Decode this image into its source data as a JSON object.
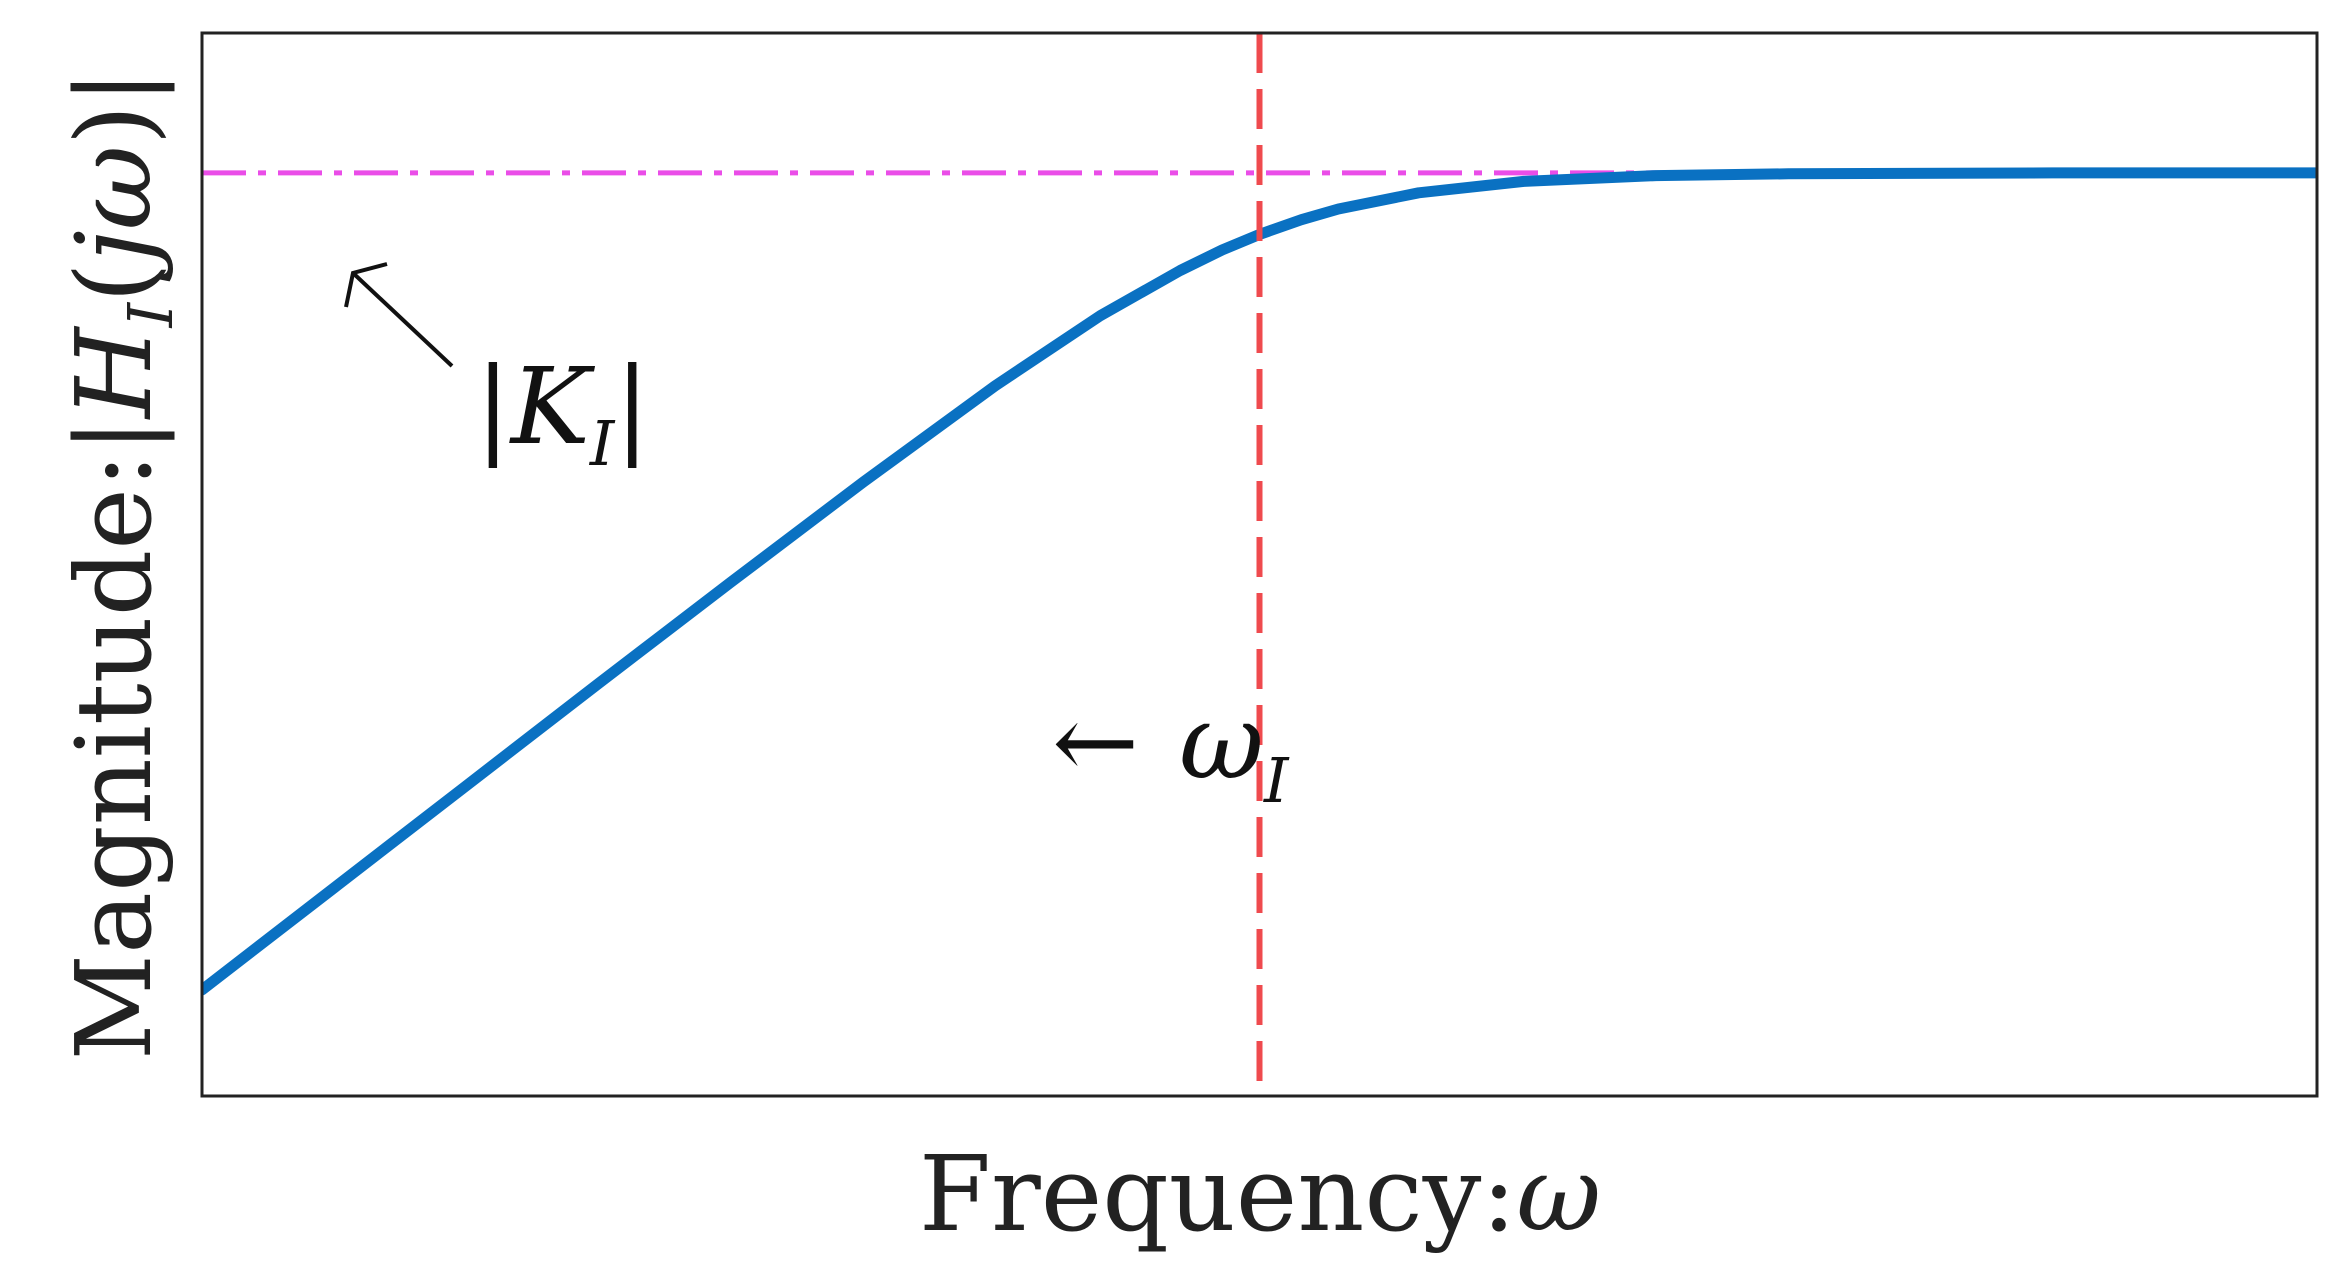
{
  "chart_data": {
    "type": "line",
    "xlabel": {
      "text": "Frequency:",
      "symbol": "ω"
    },
    "ylabel": {
      "text": "Magnitude:",
      "symbol_open": "|",
      "symbol_H": "H",
      "symbol_sub": "I",
      "symbol_arg_open": "(",
      "symbol_arg": "jω",
      "symbol_arg_close": ")",
      "symbol_close": "|"
    },
    "x_scale": "log",
    "y_scale": "log",
    "xlim": [
      0.01,
      100
    ],
    "ylim": [
      0.0055,
      2.2
    ],
    "ticks_shown": false,
    "grid": false,
    "series": [
      {
        "kind": "magnitude-curve",
        "color": "#0a71c2",
        "line_style": "solid",
        "x": [
          0.01,
          0.0178,
          0.0316,
          0.0562,
          0.1,
          0.178,
          0.316,
          0.5,
          0.708,
          0.85,
          1.0,
          1.2,
          1.41,
          2.0,
          3.16,
          5.62,
          10,
          31.6,
          100
        ],
        "y": [
          0.01,
          0.0178,
          0.0316,
          0.0562,
          0.0995,
          0.175,
          0.301,
          0.447,
          0.577,
          0.648,
          0.707,
          0.768,
          0.816,
          0.894,
          0.953,
          0.985,
          0.995,
          1.0,
          1.0
        ]
      }
    ],
    "reference_lines": [
      {
        "kind": "gain-asymptote",
        "orientation": "horizontal",
        "value": 1.0,
        "color": "#ea4de8",
        "line_style": "dashdot"
      },
      {
        "kind": "cutoff-frequency",
        "orientation": "vertical",
        "value": 1.0,
        "color": "#ef4a4e",
        "line_style": "dashed"
      }
    ],
    "annotations": [
      {
        "target": "gain-asymptote",
        "label_open": "|",
        "label_main": "K",
        "label_sub": "I",
        "label_close": "|",
        "arrow": true
      },
      {
        "target": "cutoff-frequency",
        "arrow_glyph": "←",
        "label_main": "ω",
        "label_sub": "I",
        "arrow": true
      }
    ]
  }
}
